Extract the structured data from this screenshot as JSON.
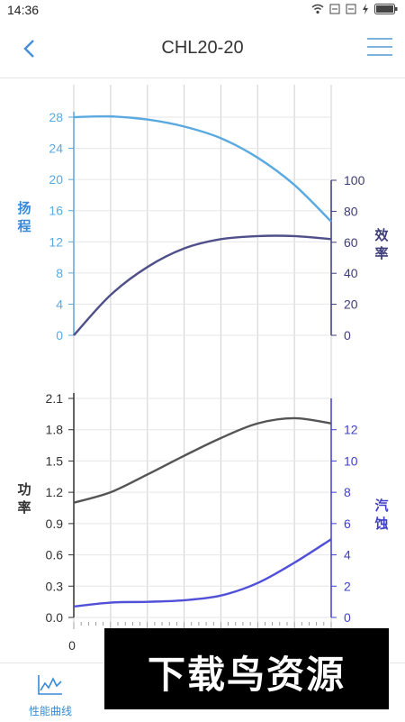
{
  "status_bar": {
    "time": "14:36",
    "icons": [
      "wifi-icon",
      "sim-icon",
      "sim-icon",
      "charging-icon",
      "battery-icon"
    ]
  },
  "app_bar": {
    "back_icon": "chevron-left-icon",
    "title": "CHL20-20",
    "menu_icon": "hamburger-menu-icon"
  },
  "chart_data": [
    {
      "type": "line",
      "x_axis_visible_tick": "0",
      "x_range": [
        0,
        28
      ],
      "y_left": {
        "label": "扬程",
        "ticks": [
          "0",
          "4",
          "8",
          "12",
          "16",
          "20",
          "24",
          "28"
        ],
        "range": [
          0,
          28
        ]
      },
      "y_right": {
        "label": "效率",
        "ticks": [
          "0",
          "20",
          "40",
          "60",
          "80",
          "100"
        ],
        "range": [
          0,
          100
        ]
      },
      "series": [
        {
          "axis": "left",
          "color": "#5aa9e0",
          "x": [
            0,
            4,
            8,
            12,
            16,
            20,
            24,
            28
          ],
          "y": [
            28,
            28.1,
            27.7,
            26.8,
            25.3,
            22.8,
            19.3,
            14.6
          ]
        },
        {
          "axis": "right",
          "color": "#4f4f8a",
          "x": [
            0,
            4,
            8,
            12,
            16,
            20,
            24,
            28
          ],
          "y": [
            0,
            26,
            44,
            56,
            62,
            64,
            64,
            62
          ]
        }
      ]
    },
    {
      "type": "line",
      "x_range": [
        0,
        28
      ],
      "y_left": {
        "label": "功率",
        "ticks": [
          "0.0",
          "0.3",
          "0.6",
          "0.9",
          "1.2",
          "1.5",
          "1.8",
          "2.1"
        ],
        "range": [
          0,
          2.1
        ]
      },
      "y_right": {
        "label": "汽蚀",
        "ticks": [
          "0",
          "2",
          "4",
          "6",
          "8",
          "10",
          "12"
        ],
        "range": [
          0,
          14
        ]
      },
      "series": [
        {
          "axis": "left",
          "color": "#555555",
          "x": [
            0,
            4,
            8,
            12,
            16,
            20,
            24,
            28
          ],
          "y": [
            1.1,
            1.2,
            1.37,
            1.55,
            1.72,
            1.86,
            1.91,
            1.86
          ]
        },
        {
          "axis": "right",
          "color": "#5050d8",
          "x": [
            0,
            4,
            8,
            12,
            16,
            20,
            24,
            28
          ],
          "y": [
            0.7,
            0.95,
            1.0,
            1.1,
            1.4,
            2.2,
            3.5,
            5.0
          ]
        }
      ]
    }
  ],
  "bottom_tabs": [
    {
      "label": "性能曲线",
      "icon": "line-chart-icon",
      "active": true
    },
    {
      "label": "",
      "icon": "",
      "active": false
    },
    {
      "label": "",
      "icon": "",
      "active": false
    },
    {
      "label": "",
      "icon": "",
      "active": false
    }
  ],
  "watermark": "下载鸟资源"
}
